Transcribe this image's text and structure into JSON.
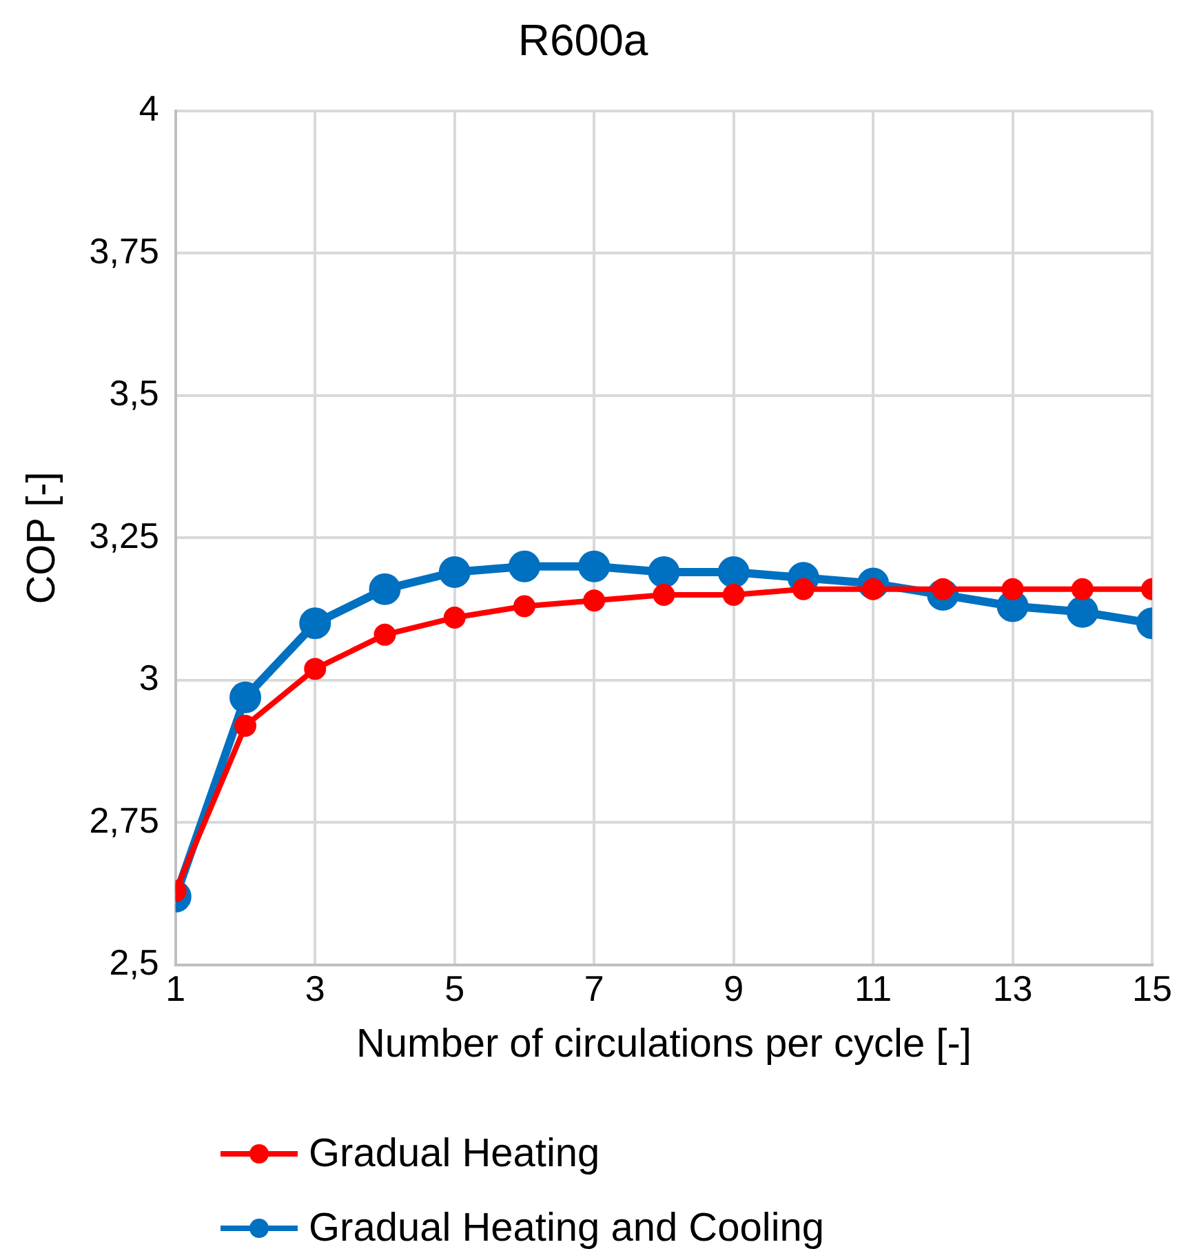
{
  "chart_data": {
    "type": "line",
    "title": "R600a",
    "xlabel": "Number of circulations per cycle [-]",
    "ylabel": "COP [-]",
    "x": [
      1,
      2,
      3,
      4,
      5,
      6,
      7,
      8,
      9,
      10,
      11,
      12,
      13,
      14,
      15
    ],
    "series": [
      {
        "name": "Gradual Heating",
        "color": "#ff0000",
        "values": [
          2.63,
          2.92,
          3.02,
          3.08,
          3.11,
          3.13,
          3.14,
          3.15,
          3.15,
          3.16,
          3.16,
          3.16,
          3.16,
          3.16,
          3.16
        ]
      },
      {
        "name": "Gradual Heating and Cooling",
        "color": "#0070c0",
        "values": [
          2.62,
          2.97,
          3.1,
          3.16,
          3.19,
          3.2,
          3.2,
          3.19,
          3.19,
          3.18,
          3.17,
          3.15,
          3.13,
          3.12,
          3.1
        ]
      }
    ],
    "xlim": [
      1,
      15
    ],
    "xticks": [
      1,
      3,
      5,
      7,
      9,
      11,
      13,
      15
    ],
    "ylim": [
      2.5,
      4
    ],
    "yticks": [
      {
        "value": 2.5,
        "label": "2,5"
      },
      {
        "value": 2.75,
        "label": "2,75"
      },
      {
        "value": 3,
        "label": "3"
      },
      {
        "value": 3.25,
        "label": "3,25"
      },
      {
        "value": 3.5,
        "label": "3,5"
      },
      {
        "value": 3.75,
        "label": "3,75"
      },
      {
        "value": 4,
        "label": "4"
      }
    ],
    "grid": true,
    "legend": "bottom",
    "marker": "circle",
    "line_style": "solid"
  }
}
